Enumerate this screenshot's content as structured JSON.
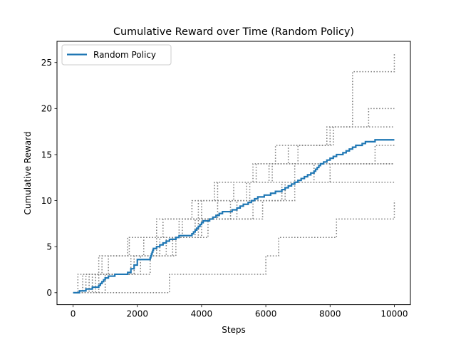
{
  "chart_data": {
    "type": "line",
    "title": "Cumulative Reward over Time (Random Policy)",
    "xlabel": "Steps",
    "ylabel": "Cumulative Reward",
    "xlim": [
      -500,
      10500
    ],
    "ylim": [
      -1.3,
      27.3
    ],
    "xticks": [
      0,
      2000,
      4000,
      6000,
      8000,
      10000
    ],
    "yticks": [
      0,
      5,
      10,
      15,
      20,
      25
    ],
    "grid": false,
    "legend": {
      "placement": "top-left",
      "entries": [
        "Random Policy"
      ]
    },
    "colors": {
      "mean": "#1f77b4",
      "runs": "#808080"
    },
    "series": [
      {
        "name": "Random Policy",
        "style": "solid",
        "x": [
          0,
          200,
          300,
          400,
          500,
          600,
          700,
          750,
          800,
          850,
          900,
          950,
          1000,
          1050,
          1100,
          1200,
          1300,
          1400,
          1500,
          1700,
          1800,
          1900,
          2000,
          2400,
          2420,
          2440,
          2460,
          2480,
          2500,
          2600,
          2700,
          2800,
          2900,
          3000,
          3200,
          3300,
          3400,
          3700,
          3750,
          3800,
          3850,
          3900,
          3950,
          4000,
          4050,
          4150,
          4250,
          4350,
          4450,
          4550,
          4650,
          4800,
          4950,
          5100,
          5200,
          5300,
          5450,
          5550,
          5650,
          5750,
          5850,
          5950,
          6050,
          6150,
          6300,
          6500,
          6600,
          6700,
          6800,
          6900,
          7000,
          7100,
          7200,
          7300,
          7400,
          7500,
          7550,
          7600,
          7650,
          7700,
          7750,
          7800,
          7850,
          7900,
          7950,
          8000,
          8050,
          8100,
          8200,
          8300,
          8400,
          8500,
          8600,
          8700,
          8800,
          8900,
          9000,
          9100,
          9200,
          9300,
          9400,
          9500,
          9600,
          9800,
          10000
        ],
        "y": [
          0,
          0.2,
          0.2,
          0.4,
          0.4,
          0.6,
          0.6,
          0.6,
          0.8,
          1.0,
          1.2,
          1.4,
          1.6,
          1.6,
          1.8,
          1.8,
          2.0,
          2.0,
          2.0,
          2.2,
          2.6,
          3.0,
          3.6,
          3.8,
          4.0,
          4.2,
          4.4,
          4.6,
          4.8,
          5.0,
          5.2,
          5.4,
          5.6,
          5.8,
          6.0,
          6.2,
          6.2,
          6.4,
          6.6,
          6.8,
          7.0,
          7.2,
          7.4,
          7.6,
          7.8,
          7.8,
          8.0,
          8.2,
          8.4,
          8.6,
          8.8,
          8.8,
          9.0,
          9.2,
          9.4,
          9.6,
          9.8,
          10.0,
          10.2,
          10.4,
          10.4,
          10.6,
          10.6,
          10.8,
          11.0,
          11.2,
          11.4,
          11.6,
          11.8,
          12.0,
          12.2,
          12.4,
          12.6,
          12.8,
          13.0,
          13.2,
          13.4,
          13.6,
          13.8,
          14.0,
          14.0,
          14.2,
          14.2,
          14.4,
          14.4,
          14.6,
          14.6,
          14.8,
          15.0,
          15.0,
          15.2,
          15.4,
          15.6,
          15.8,
          16.0,
          16.0,
          16.2,
          16.4,
          16.4,
          16.4,
          16.6,
          16.6,
          16.6,
          16.6,
          16.6
        ]
      },
      {
        "name": "",
        "style": "dotted",
        "x": [
          0,
          150,
          800,
          1650,
          1750,
          2000,
          3000,
          3800,
          4500,
          5700,
          6700,
          7400,
          8000,
          8700,
          9000,
          10000
        ],
        "y": [
          0,
          2,
          4,
          4,
          6,
          6,
          6,
          8,
          12,
          14,
          16,
          16,
          18,
          24,
          24,
          26
        ]
      },
      {
        "name": "",
        "style": "dotted",
        "x": [
          0,
          500,
          1000,
          1800,
          2200,
          2600,
          3200,
          3900,
          4400,
          5200,
          6100,
          7000,
          7900,
          8700,
          9200,
          10000
        ],
        "y": [
          0,
          2,
          2,
          4,
          6,
          8,
          8,
          10,
          12,
          12,
          14,
          16,
          18,
          18,
          20,
          20
        ]
      },
      {
        "name": "",
        "style": "dotted",
        "x": [
          0,
          400,
          900,
          1700,
          2300,
          2800,
          3700,
          4300,
          5000,
          5600,
          6300,
          7100,
          7700,
          8100,
          9000,
          10000
        ],
        "y": [
          0,
          2,
          4,
          6,
          6,
          8,
          10,
          10,
          12,
          14,
          16,
          16,
          16,
          18,
          18,
          18
        ]
      },
      {
        "name": "",
        "style": "dotted",
        "x": [
          0,
          300,
          1100,
          2000,
          2700,
          3400,
          4100,
          4900,
          5500,
          6200,
          7300,
          8000,
          8800,
          9400,
          10000
        ],
        "y": [
          0,
          2,
          4,
          4,
          6,
          8,
          8,
          10,
          12,
          14,
          14,
          14,
          14,
          16,
          16
        ]
      },
      {
        "name": "",
        "style": "dotted",
        "x": [
          0,
          600,
          1300,
          1900,
          2600,
          3300,
          4000,
          4700,
          5400,
          6000,
          6900,
          7600,
          8300,
          9200,
          10000
        ],
        "y": [
          0,
          2,
          2,
          4,
          6,
          8,
          10,
          10,
          12,
          12,
          14,
          14,
          14,
          14,
          14
        ]
      },
      {
        "name": "",
        "style": "dotted",
        "x": [
          0,
          700,
          1500,
          2100,
          2900,
          3600,
          4200,
          5100,
          5800,
          6500,
          7200,
          8100,
          8900,
          9500,
          10000
        ],
        "y": [
          0,
          2,
          2,
          4,
          6,
          6,
          8,
          10,
          10,
          12,
          12,
          12,
          12,
          12,
          12
        ]
      },
      {
        "name": "",
        "style": "dotted",
        "x": [
          0,
          1900,
          3000,
          3500,
          4500,
          6000,
          6400,
          7200,
          8200,
          10000
        ],
        "y": [
          0,
          0,
          2,
          2,
          2,
          4,
          6,
          6,
          8,
          10
        ]
      },
      {
        "name": "",
        "style": "dotted",
        "x": [
          0,
          800,
          1700,
          2400,
          3100,
          3900,
          4500,
          5300,
          5900,
          6600,
          7300,
          8000,
          8600,
          9300,
          10000
        ],
        "y": [
          0,
          2,
          2,
          4,
          6,
          8,
          8,
          8,
          10,
          12,
          12,
          14,
          14,
          14,
          14
        ]
      },
      {
        "name": "",
        "style": "dotted",
        "x": [
          0,
          1000,
          1900,
          2500,
          3200,
          4000,
          4800,
          5600,
          6200,
          6900,
          7500,
          8200,
          8900,
          9600,
          10000
        ],
        "y": [
          0,
          2,
          4,
          4,
          6,
          8,
          8,
          10,
          10,
          12,
          14,
          14,
          14,
          14,
          14
        ]
      }
    ]
  }
}
